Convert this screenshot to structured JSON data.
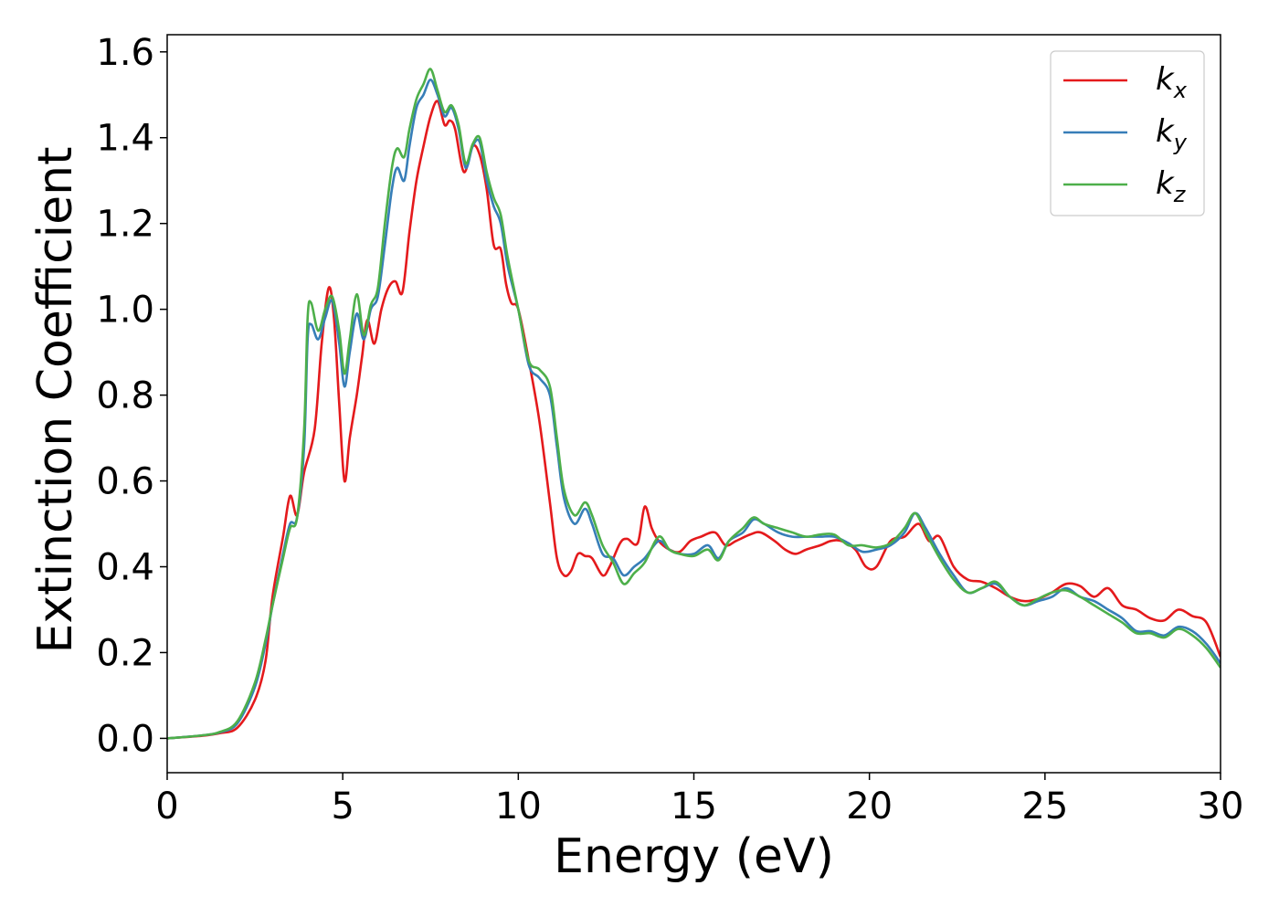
{
  "chart_data": {
    "type": "line",
    "title": "",
    "xlabel": "Energy (eV)",
    "ylabel": "Extinction Coefficient",
    "xlim": [
      0,
      30
    ],
    "ylim": [
      -0.08,
      1.64
    ],
    "xticks": [
      0,
      5,
      10,
      15,
      20,
      25,
      30
    ],
    "xtick_labels": [
      "0",
      "5",
      "10",
      "15",
      "20",
      "25",
      "30"
    ],
    "yticks": [
      0.0,
      0.2,
      0.4,
      0.6,
      0.8,
      1.0,
      1.2,
      1.4,
      1.6
    ],
    "ytick_labels": [
      "0.0",
      "0.2",
      "0.4",
      "0.6",
      "0.8",
      "1.0",
      "1.2",
      "1.4",
      "1.6"
    ],
    "grid": false,
    "legend_position": "top-right",
    "series": [
      {
        "name": "k",
        "subscript": "x",
        "color": "#e41a1c",
        "points": [
          [
            0,
            0.0
          ],
          [
            1,
            0.006
          ],
          [
            1.5,
            0.012
          ],
          [
            2,
            0.025
          ],
          [
            2.5,
            0.09
          ],
          [
            2.8,
            0.18
          ],
          [
            3.0,
            0.33
          ],
          [
            3.3,
            0.47
          ],
          [
            3.5,
            0.565
          ],
          [
            3.7,
            0.52
          ],
          [
            3.9,
            0.62
          ],
          [
            4.2,
            0.72
          ],
          [
            4.4,
            0.92
          ],
          [
            4.6,
            1.05
          ],
          [
            4.75,
            0.98
          ],
          [
            4.9,
            0.78
          ],
          [
            5.05,
            0.6
          ],
          [
            5.2,
            0.7
          ],
          [
            5.4,
            0.8
          ],
          [
            5.55,
            0.89
          ],
          [
            5.7,
            0.975
          ],
          [
            5.9,
            0.92
          ],
          [
            6.1,
            1.0
          ],
          [
            6.3,
            1.05
          ],
          [
            6.5,
            1.065
          ],
          [
            6.7,
            1.04
          ],
          [
            6.9,
            1.18
          ],
          [
            7.1,
            1.3
          ],
          [
            7.3,
            1.38
          ],
          [
            7.5,
            1.45
          ],
          [
            7.7,
            1.485
          ],
          [
            7.9,
            1.43
          ],
          [
            8.05,
            1.44
          ],
          [
            8.2,
            1.42
          ],
          [
            8.45,
            1.32
          ],
          [
            8.7,
            1.38
          ],
          [
            8.9,
            1.36
          ],
          [
            9.1,
            1.28
          ],
          [
            9.3,
            1.15
          ],
          [
            9.5,
            1.14
          ],
          [
            9.65,
            1.06
          ],
          [
            9.8,
            1.015
          ],
          [
            10.0,
            1.0
          ],
          [
            10.3,
            0.88
          ],
          [
            10.6,
            0.74
          ],
          [
            10.9,
            0.55
          ],
          [
            11.1,
            0.42
          ],
          [
            11.3,
            0.38
          ],
          [
            11.5,
            0.39
          ],
          [
            11.7,
            0.43
          ],
          [
            11.9,
            0.425
          ],
          [
            12.1,
            0.42
          ],
          [
            12.4,
            0.38
          ],
          [
            12.6,
            0.4
          ],
          [
            12.9,
            0.455
          ],
          [
            13.1,
            0.465
          ],
          [
            13.4,
            0.455
          ],
          [
            13.6,
            0.54
          ],
          [
            13.8,
            0.49
          ],
          [
            14.0,
            0.46
          ],
          [
            14.3,
            0.44
          ],
          [
            14.6,
            0.435
          ],
          [
            14.9,
            0.46
          ],
          [
            15.2,
            0.47
          ],
          [
            15.6,
            0.48
          ],
          [
            15.9,
            0.45
          ],
          [
            16.2,
            0.46
          ],
          [
            16.6,
            0.475
          ],
          [
            16.9,
            0.48
          ],
          [
            17.3,
            0.46
          ],
          [
            17.6,
            0.44
          ],
          [
            17.9,
            0.43
          ],
          [
            18.2,
            0.44
          ],
          [
            18.6,
            0.45
          ],
          [
            18.9,
            0.46
          ],
          [
            19.2,
            0.46
          ],
          [
            19.6,
            0.44
          ],
          [
            19.9,
            0.4
          ],
          [
            20.2,
            0.4
          ],
          [
            20.6,
            0.46
          ],
          [
            21.0,
            0.47
          ],
          [
            21.4,
            0.5
          ],
          [
            21.7,
            0.46
          ],
          [
            22.0,
            0.47
          ],
          [
            22.4,
            0.4
          ],
          [
            22.8,
            0.37
          ],
          [
            23.2,
            0.365
          ],
          [
            23.6,
            0.35
          ],
          [
            24.0,
            0.33
          ],
          [
            24.4,
            0.32
          ],
          [
            24.8,
            0.325
          ],
          [
            25.2,
            0.34
          ],
          [
            25.6,
            0.36
          ],
          [
            26.0,
            0.355
          ],
          [
            26.4,
            0.33
          ],
          [
            26.8,
            0.35
          ],
          [
            27.2,
            0.31
          ],
          [
            27.6,
            0.3
          ],
          [
            28.0,
            0.28
          ],
          [
            28.4,
            0.275
          ],
          [
            28.8,
            0.3
          ],
          [
            29.2,
            0.285
          ],
          [
            29.6,
            0.27
          ],
          [
            30,
            0.19
          ]
        ]
      },
      {
        "name": "k",
        "subscript": "y",
        "color": "#377eb8",
        "points": [
          [
            0,
            0.0
          ],
          [
            1,
            0.007
          ],
          [
            1.5,
            0.014
          ],
          [
            2,
            0.035
          ],
          [
            2.5,
            0.12
          ],
          [
            2.8,
            0.22
          ],
          [
            3.0,
            0.31
          ],
          [
            3.3,
            0.43
          ],
          [
            3.5,
            0.5
          ],
          [
            3.7,
            0.515
          ],
          [
            3.9,
            0.68
          ],
          [
            4.0,
            0.93
          ],
          [
            4.1,
            0.965
          ],
          [
            4.3,
            0.93
          ],
          [
            4.5,
            0.98
          ],
          [
            4.7,
            1.02
          ],
          [
            4.9,
            0.92
          ],
          [
            5.05,
            0.82
          ],
          [
            5.2,
            0.9
          ],
          [
            5.4,
            0.99
          ],
          [
            5.6,
            0.93
          ],
          [
            5.8,
            1.0
          ],
          [
            6.0,
            1.03
          ],
          [
            6.2,
            1.15
          ],
          [
            6.4,
            1.28
          ],
          [
            6.55,
            1.33
          ],
          [
            6.75,
            1.3
          ],
          [
            6.9,
            1.38
          ],
          [
            7.1,
            1.47
          ],
          [
            7.3,
            1.5
          ],
          [
            7.5,
            1.535
          ],
          [
            7.7,
            1.5
          ],
          [
            7.9,
            1.45
          ],
          [
            8.1,
            1.47
          ],
          [
            8.3,
            1.42
          ],
          [
            8.5,
            1.33
          ],
          [
            8.7,
            1.38
          ],
          [
            8.9,
            1.39
          ],
          [
            9.1,
            1.3
          ],
          [
            9.3,
            1.24
          ],
          [
            9.5,
            1.2
          ],
          [
            9.7,
            1.1
          ],
          [
            10.0,
            1.0
          ],
          [
            10.3,
            0.87
          ],
          [
            10.6,
            0.84
          ],
          [
            10.9,
            0.8
          ],
          [
            11.1,
            0.68
          ],
          [
            11.3,
            0.56
          ],
          [
            11.6,
            0.5
          ],
          [
            11.9,
            0.535
          ],
          [
            12.1,
            0.5
          ],
          [
            12.4,
            0.43
          ],
          [
            12.7,
            0.42
          ],
          [
            13.0,
            0.38
          ],
          [
            13.3,
            0.4
          ],
          [
            13.6,
            0.42
          ],
          [
            14.0,
            0.46
          ],
          [
            14.3,
            0.44
          ],
          [
            14.6,
            0.43
          ],
          [
            15.0,
            0.43
          ],
          [
            15.4,
            0.45
          ],
          [
            15.7,
            0.42
          ],
          [
            16.0,
            0.46
          ],
          [
            16.4,
            0.48
          ],
          [
            16.7,
            0.51
          ],
          [
            17.0,
            0.5
          ],
          [
            17.4,
            0.48
          ],
          [
            17.8,
            0.47
          ],
          [
            18.2,
            0.47
          ],
          [
            18.6,
            0.47
          ],
          [
            19.0,
            0.47
          ],
          [
            19.4,
            0.455
          ],
          [
            19.8,
            0.435
          ],
          [
            20.2,
            0.44
          ],
          [
            20.6,
            0.45
          ],
          [
            21.0,
            0.48
          ],
          [
            21.3,
            0.525
          ],
          [
            21.6,
            0.49
          ],
          [
            22.0,
            0.43
          ],
          [
            22.4,
            0.38
          ],
          [
            22.8,
            0.34
          ],
          [
            23.2,
            0.35
          ],
          [
            23.6,
            0.36
          ],
          [
            24.0,
            0.33
          ],
          [
            24.4,
            0.31
          ],
          [
            24.8,
            0.32
          ],
          [
            25.2,
            0.33
          ],
          [
            25.6,
            0.35
          ],
          [
            26.0,
            0.33
          ],
          [
            26.4,
            0.32
          ],
          [
            26.8,
            0.3
          ],
          [
            27.2,
            0.28
          ],
          [
            27.6,
            0.25
          ],
          [
            28.0,
            0.25
          ],
          [
            28.4,
            0.24
          ],
          [
            28.8,
            0.26
          ],
          [
            29.2,
            0.25
          ],
          [
            29.6,
            0.22
          ],
          [
            30,
            0.175
          ]
        ]
      },
      {
        "name": "k",
        "subscript": "z",
        "color": "#4daf4a",
        "points": [
          [
            0,
            0.0
          ],
          [
            1,
            0.007
          ],
          [
            1.5,
            0.015
          ],
          [
            2,
            0.04
          ],
          [
            2.5,
            0.13
          ],
          [
            2.8,
            0.23
          ],
          [
            3.0,
            0.31
          ],
          [
            3.3,
            0.42
          ],
          [
            3.5,
            0.49
          ],
          [
            3.7,
            0.515
          ],
          [
            3.9,
            0.72
          ],
          [
            4.0,
            0.98
          ],
          [
            4.1,
            1.015
          ],
          [
            4.3,
            0.95
          ],
          [
            4.5,
            1.0
          ],
          [
            4.7,
            1.03
          ],
          [
            4.9,
            0.95
          ],
          [
            5.05,
            0.85
          ],
          [
            5.2,
            0.93
          ],
          [
            5.4,
            1.035
          ],
          [
            5.6,
            0.94
          ],
          [
            5.8,
            1.01
          ],
          [
            6.0,
            1.05
          ],
          [
            6.2,
            1.2
          ],
          [
            6.4,
            1.33
          ],
          [
            6.55,
            1.375
          ],
          [
            6.75,
            1.355
          ],
          [
            6.9,
            1.42
          ],
          [
            7.1,
            1.49
          ],
          [
            7.3,
            1.525
          ],
          [
            7.5,
            1.56
          ],
          [
            7.7,
            1.51
          ],
          [
            7.9,
            1.46
          ],
          [
            8.1,
            1.475
          ],
          [
            8.3,
            1.43
          ],
          [
            8.5,
            1.34
          ],
          [
            8.7,
            1.385
          ],
          [
            8.9,
            1.4
          ],
          [
            9.1,
            1.32
          ],
          [
            9.3,
            1.26
          ],
          [
            9.5,
            1.22
          ],
          [
            9.7,
            1.12
          ],
          [
            10.0,
            1.0
          ],
          [
            10.3,
            0.88
          ],
          [
            10.6,
            0.86
          ],
          [
            10.9,
            0.82
          ],
          [
            11.1,
            0.7
          ],
          [
            11.3,
            0.58
          ],
          [
            11.6,
            0.52
          ],
          [
            11.9,
            0.55
          ],
          [
            12.1,
            0.52
          ],
          [
            12.4,
            0.45
          ],
          [
            12.7,
            0.41
          ],
          [
            13.0,
            0.36
          ],
          [
            13.3,
            0.385
          ],
          [
            13.6,
            0.41
          ],
          [
            14.0,
            0.47
          ],
          [
            14.3,
            0.44
          ],
          [
            14.6,
            0.43
          ],
          [
            15.0,
            0.425
          ],
          [
            15.4,
            0.44
          ],
          [
            15.7,
            0.415
          ],
          [
            16.0,
            0.46
          ],
          [
            16.4,
            0.49
          ],
          [
            16.7,
            0.515
          ],
          [
            17.0,
            0.5
          ],
          [
            17.4,
            0.49
          ],
          [
            17.8,
            0.48
          ],
          [
            18.2,
            0.47
          ],
          [
            18.6,
            0.475
          ],
          [
            19.0,
            0.475
          ],
          [
            19.4,
            0.45
          ],
          [
            19.8,
            0.45
          ],
          [
            20.2,
            0.445
          ],
          [
            20.6,
            0.455
          ],
          [
            21.0,
            0.49
          ],
          [
            21.3,
            0.525
          ],
          [
            21.6,
            0.48
          ],
          [
            22.0,
            0.42
          ],
          [
            22.4,
            0.37
          ],
          [
            22.8,
            0.34
          ],
          [
            23.2,
            0.35
          ],
          [
            23.6,
            0.365
          ],
          [
            24.0,
            0.33
          ],
          [
            24.4,
            0.31
          ],
          [
            24.8,
            0.325
          ],
          [
            25.2,
            0.34
          ],
          [
            25.6,
            0.345
          ],
          [
            26.0,
            0.33
          ],
          [
            26.4,
            0.31
          ],
          [
            26.8,
            0.29
          ],
          [
            27.2,
            0.27
          ],
          [
            27.6,
            0.245
          ],
          [
            28.0,
            0.245
          ],
          [
            28.4,
            0.235
          ],
          [
            28.8,
            0.255
          ],
          [
            29.2,
            0.24
          ],
          [
            29.6,
            0.21
          ],
          [
            30,
            0.165
          ]
        ]
      }
    ]
  }
}
